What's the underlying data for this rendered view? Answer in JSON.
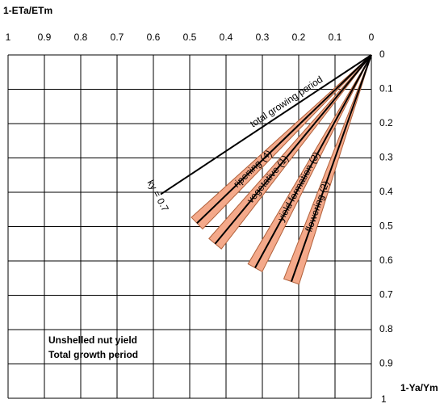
{
  "chart_data": {
    "type": "line",
    "x_label": "1-ETa/ETm",
    "y_label": "1-Ya/Ym",
    "xlim": [
      1,
      0
    ],
    "ylim": [
      0,
      1
    ],
    "xticks": [
      1,
      0.9,
      0.8,
      0.7,
      0.6,
      0.5,
      0.4,
      0.3,
      0.2,
      0.1,
      0
    ],
    "yticks": [
      0,
      0.1,
      0.2,
      0.3,
      0.4,
      0.5,
      0.6,
      0.7,
      0.8,
      0.9,
      1
    ],
    "grid": true,
    "annotations": [
      "Unshelled nut yield",
      "Total growth period"
    ],
    "series": [
      {
        "name": "total growing period",
        "style": "line",
        "color": "#000000",
        "x": [
          0,
          0.58
        ],
        "values": [
          0,
          0.406
        ],
        "annotation": "ky = 0.7"
      },
      {
        "name": "ripening (4)",
        "style": "wedge",
        "color": "#f4a98a",
        "x": [
          0,
          0.48
        ],
        "values": [
          0,
          0.49
        ]
      },
      {
        "name": "vegetative (1)",
        "style": "wedge",
        "color": "#f4a98a",
        "x": [
          0,
          0.43
        ],
        "values": [
          0,
          0.55
        ]
      },
      {
        "name": "yield formation (3)",
        "style": "wedge",
        "color": "#f4a98a",
        "x": [
          0,
          0.32
        ],
        "values": [
          0,
          0.62
        ]
      },
      {
        "name": "flowering (2)",
        "style": "wedge",
        "color": "#f4a98a",
        "x": [
          0,
          0.22
        ],
        "values": [
          0,
          0.66
        ]
      }
    ]
  }
}
